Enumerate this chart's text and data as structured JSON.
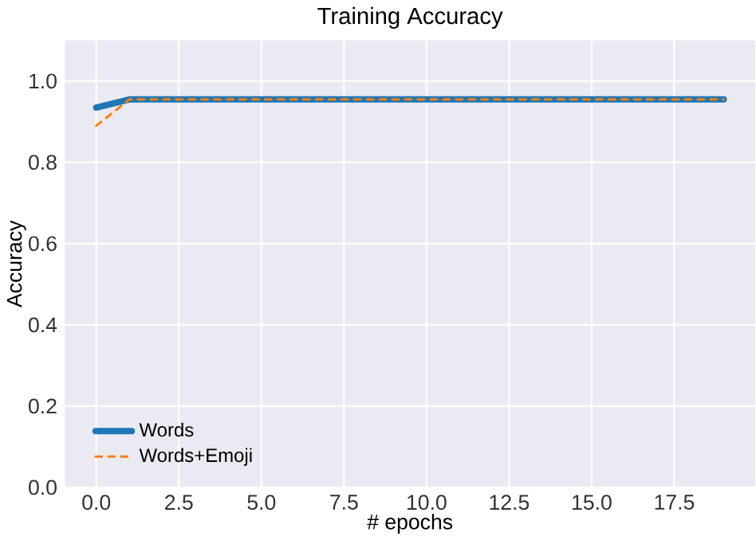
{
  "chart_data": {
    "type": "line",
    "title": "Training Accuracy",
    "xlabel": "# epochs",
    "ylabel": "Accuracy",
    "x": [
      0,
      1,
      2,
      3,
      4,
      5,
      6,
      7,
      8,
      9,
      10,
      11,
      12,
      13,
      14,
      15,
      16,
      17,
      18,
      19
    ],
    "series": [
      {
        "name": "Words",
        "color": "#1f77b4",
        "line_style": "solid",
        "values": [
          0.935,
          0.955,
          0.955,
          0.955,
          0.955,
          0.955,
          0.955,
          0.955,
          0.955,
          0.955,
          0.955,
          0.955,
          0.955,
          0.955,
          0.955,
          0.955,
          0.955,
          0.955,
          0.955,
          0.955
        ]
      },
      {
        "name": "Words+Emoji",
        "color": "#ff7f0e",
        "line_style": "dashed",
        "values": [
          0.89,
          0.955,
          0.955,
          0.955,
          0.955,
          0.955,
          0.955,
          0.955,
          0.955,
          0.955,
          0.955,
          0.955,
          0.955,
          0.955,
          0.955,
          0.955,
          0.955,
          0.955,
          0.955,
          0.955
        ]
      }
    ],
    "xlim": [
      -0.95,
      19.95
    ],
    "ylim": [
      0,
      1.1
    ],
    "xticks": [
      {
        "value": 0,
        "label": "0.0"
      },
      {
        "value": 2.5,
        "label": "2.5"
      },
      {
        "value": 5,
        "label": "5.0"
      },
      {
        "value": 7.5,
        "label": "7.5"
      },
      {
        "value": 10,
        "label": "10.0"
      },
      {
        "value": 12.5,
        "label": "12.5"
      },
      {
        "value": 15,
        "label": "15.0"
      },
      {
        "value": 17.5,
        "label": "17.5"
      }
    ],
    "yticks": [
      {
        "value": 0,
        "label": "0.0"
      },
      {
        "value": 0.2,
        "label": "0.2"
      },
      {
        "value": 0.4,
        "label": "0.4"
      },
      {
        "value": 0.6,
        "label": "0.6"
      },
      {
        "value": 0.8,
        "label": "0.8"
      },
      {
        "value": 1,
        "label": "1.0"
      }
    ],
    "grid": true,
    "legend": "bottom left",
    "marker": "none"
  }
}
